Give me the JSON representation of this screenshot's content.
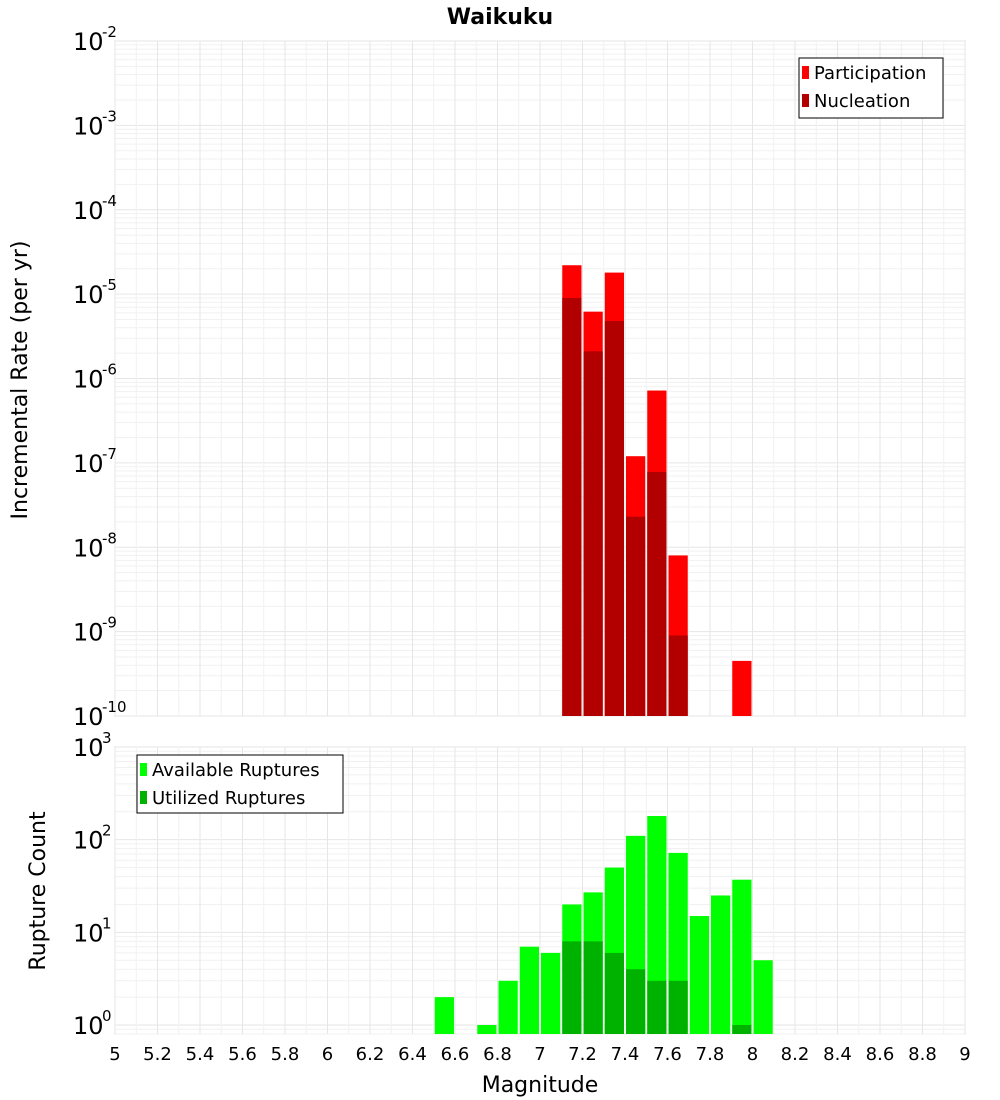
{
  "chart_data": [
    {
      "type": "bar",
      "title": "Waikuku",
      "xlabel": "",
      "ylabel": "Incremental Rate (per yr)",
      "yscale": "log",
      "ylim": [
        1e-10,
        0.01
      ],
      "xlim": [
        5,
        9
      ],
      "bar_width": 0.1,
      "legend": "top-right",
      "grid": true,
      "series": [
        {
          "name": "Participation",
          "color": "#ff0000",
          "x": [
            7.15,
            7.25,
            7.35,
            7.45,
            7.55,
            7.65,
            7.95
          ],
          "values": [
            2.2e-05,
            6.2e-06,
            1.8e-05,
            1.2e-07,
            7.2e-07,
            8e-09,
            4.5e-10
          ]
        },
        {
          "name": "Nucleation",
          "color": "#b20000",
          "x": [
            7.15,
            7.25,
            7.35,
            7.45,
            7.55,
            7.65
          ],
          "values": [
            9e-06,
            2.1e-06,
            4.8e-06,
            2.3e-08,
            7.8e-08,
            9e-10
          ]
        }
      ]
    },
    {
      "type": "bar",
      "title": "",
      "xlabel": "Magnitude",
      "ylabel": "Rupture Count",
      "yscale": "log",
      "ylim": [
        0.8,
        1000
      ],
      "xlim": [
        5,
        9
      ],
      "bar_width": 0.1,
      "legend": "top-left",
      "grid": true,
      "series": [
        {
          "name": "Available Ruptures",
          "color": "#00ff00",
          "x": [
            6.55,
            6.75,
            6.85,
            6.95,
            7.05,
            7.15,
            7.25,
            7.35,
            7.45,
            7.55,
            7.65,
            7.75,
            7.85,
            7.95,
            8.05
          ],
          "values": [
            2,
            1,
            3,
            7,
            6,
            20,
            27,
            50,
            110,
            180,
            72,
            15,
            25,
            37,
            5
          ]
        },
        {
          "name": "Utilized Ruptures",
          "color": "#00b200",
          "x": [
            7.15,
            7.25,
            7.35,
            7.45,
            7.55,
            7.65,
            7.95
          ],
          "values": [
            8,
            8,
            6,
            4,
            3,
            3,
            1
          ]
        }
      ]
    }
  ],
  "x_ticks": [
    "5",
    "5.2",
    "5.4",
    "5.6",
    "5.8",
    "6",
    "6.2",
    "6.4",
    "6.6",
    "6.8",
    "7",
    "7.2",
    "7.4",
    "7.6",
    "7.8",
    "8",
    "8.2",
    "8.4",
    "8.6",
    "8.8",
    "9"
  ],
  "top_y_ticks": [
    {
      "base": "10",
      "exp": "-10",
      "value": 1e-10
    },
    {
      "base": "10",
      "exp": "-9",
      "value": 1e-09
    },
    {
      "base": "10",
      "exp": "-8",
      "value": 1e-08
    },
    {
      "base": "10",
      "exp": "-7",
      "value": 1e-07
    },
    {
      "base": "10",
      "exp": "-6",
      "value": 1e-06
    },
    {
      "base": "10",
      "exp": "-5",
      "value": 1e-05
    },
    {
      "base": "10",
      "exp": "-4",
      "value": 0.0001
    },
    {
      "base": "10",
      "exp": "-3",
      "value": 0.001
    },
    {
      "base": "10",
      "exp": "-2",
      "value": 0.01
    }
  ],
  "bottom_y_ticks": [
    {
      "base": "10",
      "exp": "0",
      "value": 1
    },
    {
      "base": "10",
      "exp": "1",
      "value": 10
    },
    {
      "base": "10",
      "exp": "2",
      "value": 100
    },
    {
      "base": "10",
      "exp": "3",
      "value": 1000
    }
  ]
}
